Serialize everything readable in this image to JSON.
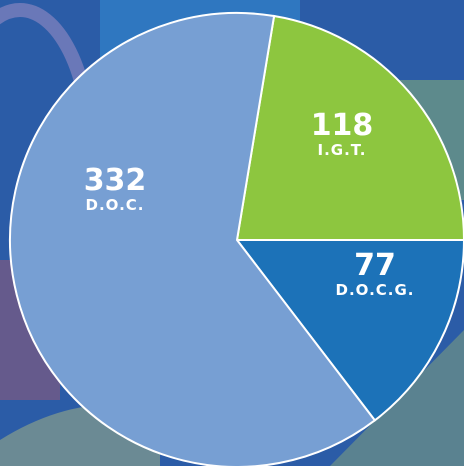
{
  "chart_data": {
    "type": "pie",
    "categories": [
      "I.G.T.",
      "D.O.C.G.",
      "D.O.C."
    ],
    "values": [
      118,
      77,
      332
    ],
    "colors": [
      "#8dc63f",
      "#1c72b8",
      "#779fd3"
    ]
  }
}
